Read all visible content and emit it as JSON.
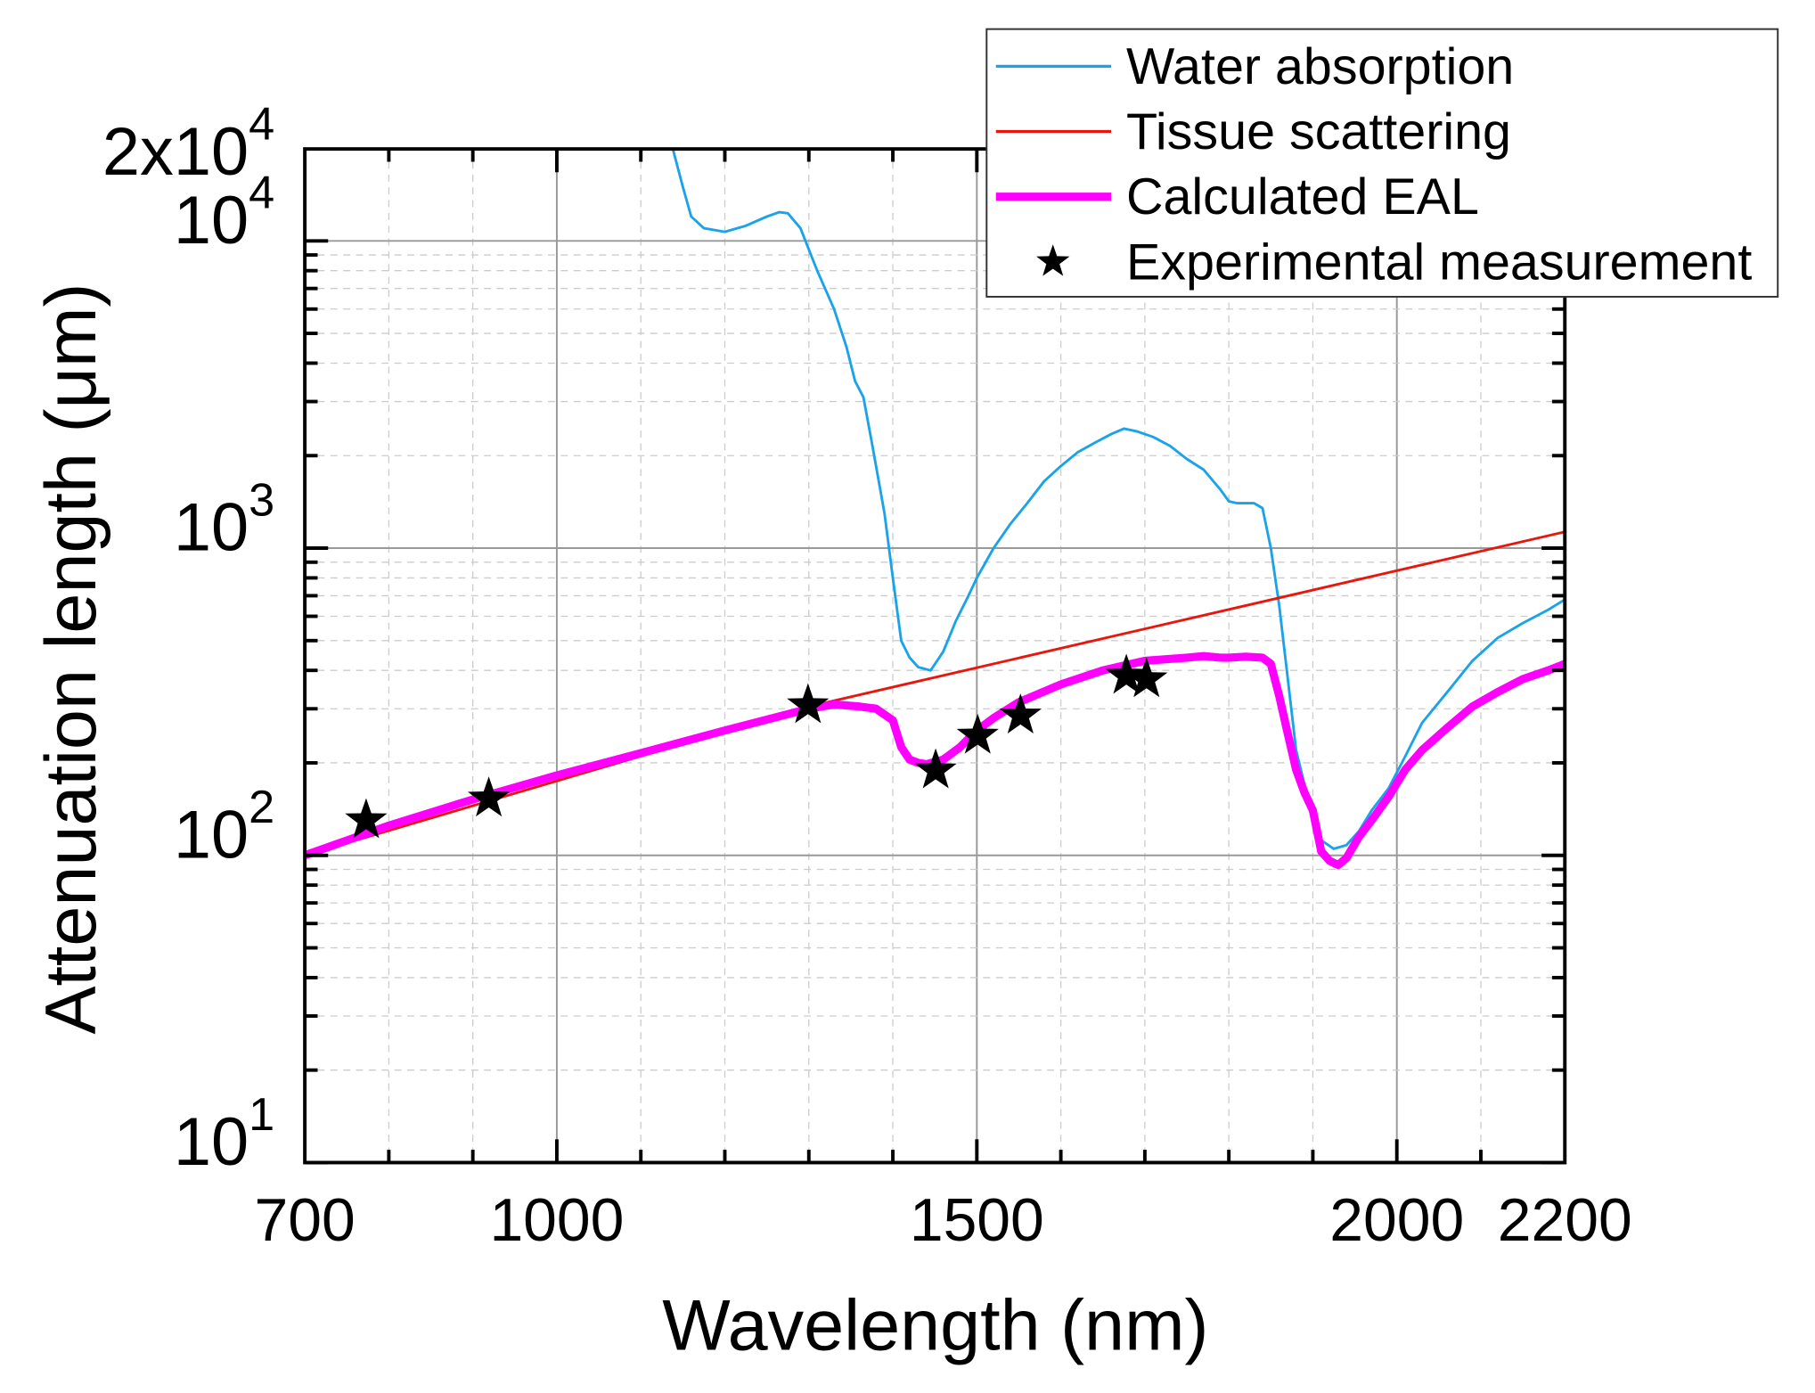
{
  "chart_data": {
    "type": "line",
    "title": "",
    "xlabel": "Wavelength (nm)",
    "ylabel": "Attenuation length (μm)",
    "xlim": [
      700,
      2200
    ],
    "ylim": [
      10,
      20000
    ],
    "yscale": "log",
    "grid": true,
    "x_ticks": [
      {
        "value": 700,
        "label": "700"
      },
      {
        "value": 1000,
        "label": "1000"
      },
      {
        "value": 1500,
        "label": "1500"
      },
      {
        "value": 2000,
        "label": "2000"
      },
      {
        "value": 2200,
        "label": "2200"
      }
    ],
    "y_ticks": [
      {
        "value": 10,
        "base": "10",
        "exp": "1"
      },
      {
        "value": 100,
        "base": "10",
        "exp": "2"
      },
      {
        "value": 1000,
        "base": "10",
        "exp": "3"
      },
      {
        "value": 10000,
        "base": "10",
        "exp": "4"
      },
      {
        "value": 20000,
        "base": "2x10",
        "exp": "4"
      }
    ],
    "legend_position": "top-right",
    "series": [
      {
        "name": "Water absorption",
        "color": "#1aa3e8",
        "style": "thin-line",
        "x": [
          1138,
          1150,
          1160,
          1175,
          1200,
          1225,
          1250,
          1265,
          1275,
          1290,
          1310,
          1330,
          1345,
          1355,
          1365,
          1375,
          1390,
          1400,
          1410,
          1420,
          1430,
          1445,
          1460,
          1475,
          1490,
          1500,
          1520,
          1540,
          1560,
          1580,
          1600,
          1620,
          1640,
          1660,
          1675,
          1690,
          1710,
          1730,
          1750,
          1770,
          1790,
          1800,
          1810,
          1830,
          1840,
          1850,
          1860,
          1870,
          1880,
          1890,
          1900,
          1910,
          1925,
          1940,
          1955,
          1970,
          1990,
          2010,
          2030,
          2060,
          2090,
          2120,
          2150,
          2180,
          2200
        ],
        "values": [
          20000,
          15000,
          12000,
          11000,
          10700,
          11200,
          12000,
          12400,
          12300,
          11000,
          8000,
          6000,
          4500,
          3500,
          3100,
          2200,
          1300,
          800,
          500,
          440,
          410,
          400,
          460,
          580,
          700,
          800,
          1000,
          1200,
          1400,
          1650,
          1850,
          2050,
          2200,
          2350,
          2450,
          2400,
          2300,
          2150,
          1950,
          1800,
          1550,
          1420,
          1400,
          1400,
          1350,
          1000,
          650,
          380,
          220,
          170,
          140,
          112,
          105,
          108,
          120,
          140,
          165,
          210,
          270,
          340,
          430,
          510,
          570,
          630,
          680
        ]
      },
      {
        "name": "Tissue scattering",
        "color": "#e8160c",
        "style": "thin-line",
        "x": [
          700,
          1300,
          2200
        ],
        "values": [
          100,
          305,
          1130
        ]
      },
      {
        "name": "Calculated EAL",
        "color": "#ff00ff",
        "style": "thick-line",
        "x": [
          700,
          800,
          900,
          1000,
          1100,
          1200,
          1300,
          1330,
          1360,
          1380,
          1400,
          1410,
          1420,
          1430,
          1440,
          1460,
          1480,
          1500,
          1520,
          1550,
          1600,
          1650,
          1700,
          1750,
          1770,
          1790,
          1800,
          1820,
          1840,
          1850,
          1860,
          1870,
          1880,
          1890,
          1900,
          1910,
          1920,
          1930,
          1940,
          1955,
          1970,
          1990,
          2010,
          2030,
          2060,
          2090,
          2120,
          2150,
          2180,
          2200
        ],
        "values": [
          100,
          125,
          152,
          182,
          215,
          255,
          300,
          310,
          305,
          300,
          275,
          225,
          205,
          200,
          198,
          205,
          225,
          255,
          280,
          315,
          360,
          400,
          430,
          440,
          445,
          440,
          440,
          443,
          440,
          420,
          330,
          250,
          190,
          160,
          140,
          103,
          96,
          93,
          98,
          115,
          130,
          155,
          190,
          220,
          260,
          305,
          340,
          375,
          400,
          420
        ]
      },
      {
        "name": "Experimental measurement",
        "color": "#000000",
        "style": "star-marker",
        "x": [
          773,
          919,
          1299,
          1451,
          1501,
          1552,
          1678,
          1702
        ],
        "values": [
          130,
          153,
          308,
          189,
          245,
          285,
          384,
          374
        ]
      }
    ]
  }
}
